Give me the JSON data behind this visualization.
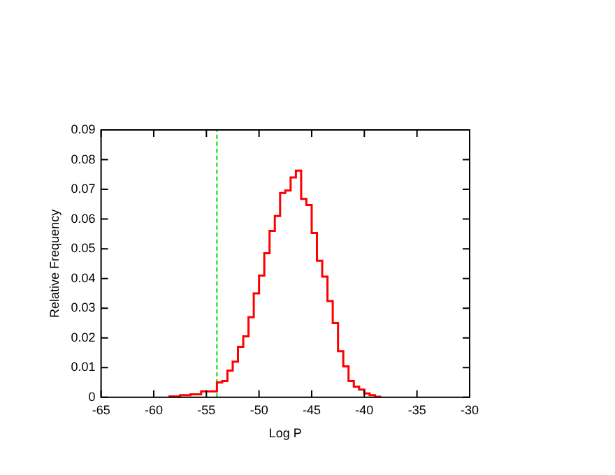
{
  "chart_data": {
    "type": "histogram",
    "xlabel": "Log P",
    "ylabel": "Relative Frequency",
    "bins": [
      -58.5,
      -58,
      -57.5,
      -57,
      -56.5,
      -56,
      -55.5,
      -55,
      -54.5,
      -54,
      -53.5,
      -53,
      -52.5,
      -52,
      -51.5,
      -51,
      -50.5,
      -50,
      -49.5,
      -49,
      -48.5,
      -48,
      -47.5,
      -47,
      -46.5,
      -46,
      -45.5,
      -45,
      -44.5,
      -44,
      -43.5,
      -43,
      -42.5,
      -42,
      -41.5,
      -41,
      -40.5,
      -40,
      -39.5,
      -39,
      -38.5
    ],
    "values": [
      0.0003,
      0.0003,
      0.0007,
      0.0007,
      0.001,
      0.001,
      0.002,
      0.002,
      0.002,
      0.005,
      0.0055,
      0.009,
      0.012,
      0.017,
      0.0205,
      0.027,
      0.035,
      0.041,
      0.0485,
      0.056,
      0.061,
      0.0688,
      0.0696,
      0.074,
      0.0763,
      0.0668,
      0.0647,
      0.0553,
      0.046,
      0.0406,
      0.0324,
      0.025,
      0.0155,
      0.0104,
      0.0055,
      0.0036,
      0.0026,
      0.0013,
      0.0007,
      0.0002
    ],
    "color": "#ff0000",
    "xlim": [
      -65,
      -30
    ],
    "xticks": [
      -65,
      -60,
      -55,
      -50,
      -45,
      -40,
      -35,
      -30
    ],
    "ylim": [
      0,
      0.09
    ],
    "yticks": [
      0,
      0.01,
      0.02,
      0.03,
      0.04,
      0.05,
      0.06,
      0.07,
      0.08,
      0.09
    ],
    "ref_lines": [
      {
        "axis": "x",
        "value": -54,
        "color": "#00dd00",
        "line_style": "dashed"
      }
    ],
    "grid": false,
    "legend": false
  }
}
